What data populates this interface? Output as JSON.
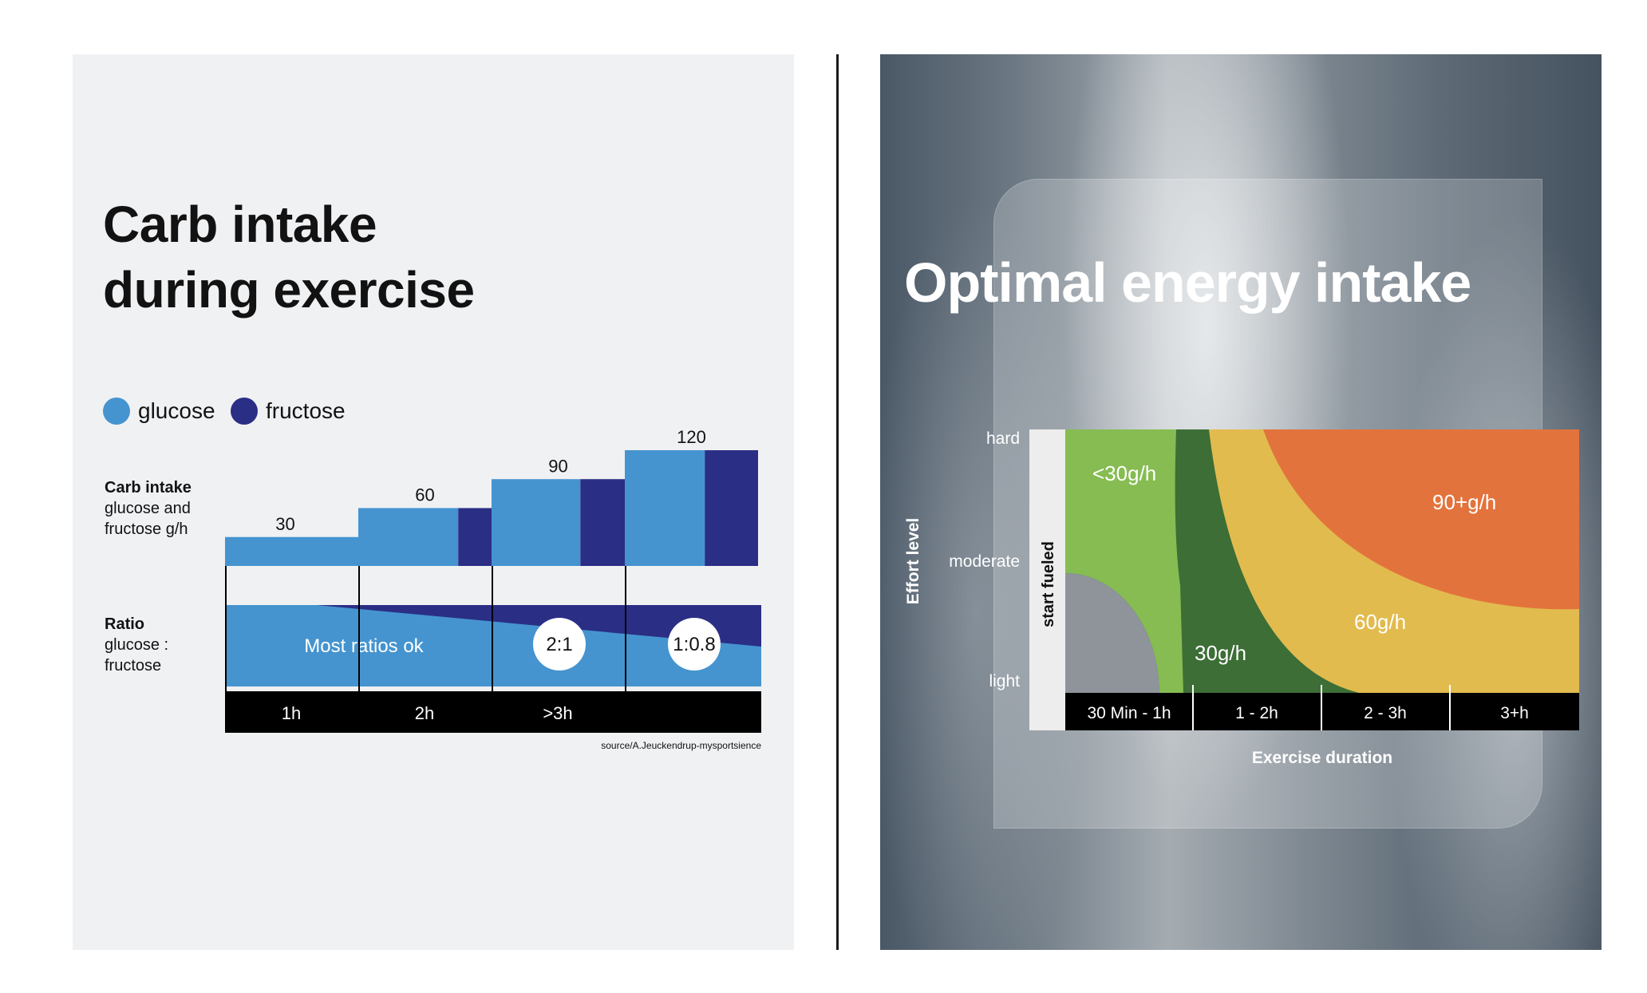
{
  "left": {
    "title": "Carb intake\nduring exercise",
    "legend": [
      {
        "label": "glucose",
        "color": "#4594cf"
      },
      {
        "label": "fructose",
        "color": "#2b2e85"
      }
    ],
    "carb_label": {
      "bold": "Carb intake",
      "lines": [
        "glucose and",
        "fructose g/h"
      ]
    },
    "ratio_label": {
      "bold": "Ratio",
      "lines": [
        "glucose :",
        "fructose"
      ]
    },
    "ratio_text": "Most ratios ok",
    "ratio_badges": [
      "2:1",
      "1:0.8"
    ],
    "time_labels": [
      "1h",
      "2h",
      ">3h",
      ""
    ],
    "source": "source/A.Jeuckendrup-mysportsience"
  },
  "right": {
    "title": "Optimal energy intake",
    "y_axis_title": "Effort level",
    "y_ticks": [
      "hard",
      "moderate",
      "light"
    ],
    "start_label": "start fueled",
    "zone_labels": [
      "<30g/h",
      "30g/h",
      "60g/h",
      "90+g/h"
    ],
    "zone_colors": {
      "<30g/h": "#86bc52",
      "30g/h": "#3c6e36",
      "60g/h": "#e2bb4e",
      "90+g/h": "#e3733c"
    },
    "duration_labels": [
      "30 Min - 1h",
      "1 - 2h",
      "2 - 3h",
      "3+h"
    ],
    "x_axis_title": "Exercise duration"
  },
  "chart_data": [
    {
      "type": "bar",
      "title": "Carb intake during exercise",
      "categories": [
        "1h",
        "2h",
        ">3h",
        ""
      ],
      "ylabel": "Carb intake glucose and fructose g/h",
      "totals": [
        30,
        60,
        90,
        120
      ],
      "series": [
        {
          "name": "glucose",
          "values": [
            30,
            45,
            60,
            72
          ]
        },
        {
          "name": "fructose",
          "values": [
            0,
            15,
            30,
            48
          ]
        }
      ],
      "ratio": {
        "labels": [
          "Most ratios ok",
          "2:1",
          "1:0.8"
        ]
      },
      "ylim": [
        0,
        120
      ],
      "legend": "top-left"
    },
    {
      "type": "heatmap",
      "title": "Optimal energy intake",
      "xlabel": "Exercise duration",
      "ylabel": "Effort level",
      "x_categories": [
        "30 Min - 1h",
        "1 - 2h",
        "2 - 3h",
        "3+h"
      ],
      "y_categories": [
        "hard",
        "moderate",
        "light"
      ],
      "zones": [
        "<30g/h",
        "30g/h",
        "60g/h",
        "90+g/h"
      ]
    }
  ]
}
